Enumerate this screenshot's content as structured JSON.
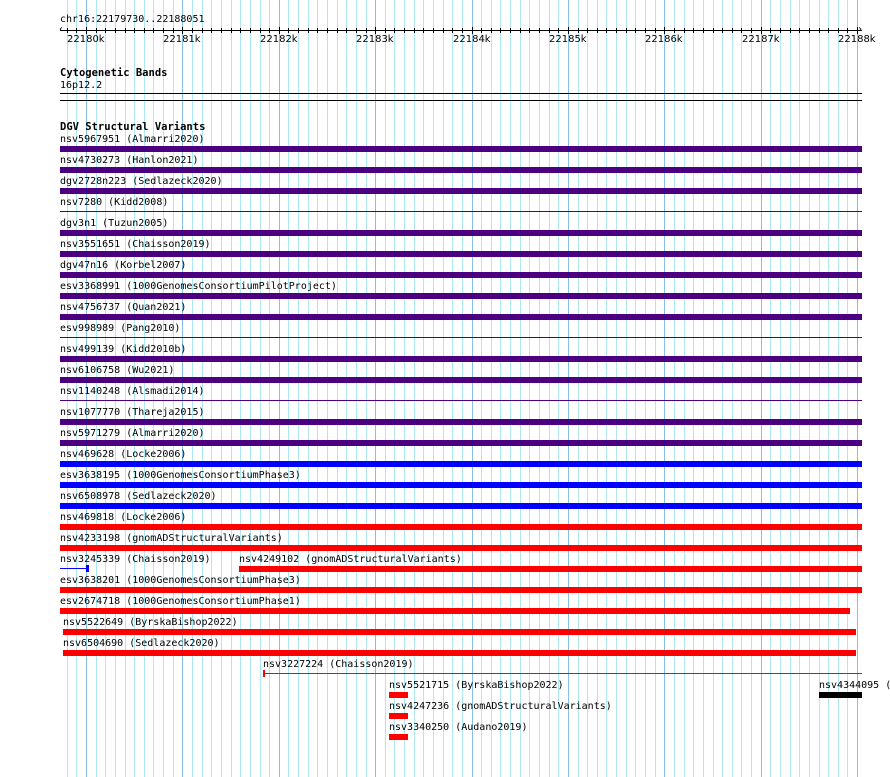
{
  "view": {
    "chrom": "chr16",
    "start": 22179730,
    "end": 22188051,
    "location_label": "chr16:22179730..22188051"
  },
  "ruler": {
    "tick_labels": [
      "22180k",
      "22181k",
      "22182k",
      "22183k",
      "22184k",
      "22185k",
      "22186k",
      "22187k",
      "22188k"
    ]
  },
  "cytoband_track": {
    "title": "Cytogenetic Bands",
    "band": "16p12.2"
  },
  "dgv_track": {
    "title": "DGV Structural Variants",
    "colors": {
      "purple": "#4b0082",
      "blue": "#0000ff",
      "red": "#ff0000",
      "black": "#000000"
    },
    "features": [
      {
        "label": "nsv5967951 (Almarri2020)",
        "color": "purple",
        "style": "thick",
        "row": 0,
        "start": 22179730,
        "end": 22188051
      },
      {
        "label": "nsv4730273 (Hanlon2021)",
        "color": "purple",
        "style": "thick",
        "row": 1,
        "start": 22179730,
        "end": 22188051
      },
      {
        "label": "dgv2728n223 (Sedlazeck2020)",
        "color": "purple",
        "style": "thick",
        "row": 2,
        "start": 22179730,
        "end": 22188051
      },
      {
        "label": "nsv7280 (Kidd2008)",
        "color": "purple",
        "style": "thin",
        "row": 3,
        "start": 22179730,
        "end": 22188051
      },
      {
        "label": "dgv3n1 (Tuzun2005)",
        "color": "purple",
        "style": "thick",
        "row": 4,
        "start": 22179730,
        "end": 22188051
      },
      {
        "label": "nsv3551651 (Chaisson2019)",
        "color": "purple",
        "style": "thick",
        "row": 5,
        "start": 22179730,
        "end": 22188051
      },
      {
        "label": "dgv47n16 (Korbel2007)",
        "color": "purple",
        "style": "thick",
        "row": 6,
        "start": 22179730,
        "end": 22188051
      },
      {
        "label": "esv3368991 (1000GenomesConsortiumPilotProject)",
        "color": "purple",
        "style": "thick",
        "row": 7,
        "start": 22179730,
        "end": 22188051
      },
      {
        "label": "nsv4756737 (Quan2021)",
        "color": "purple",
        "style": "thick",
        "row": 8,
        "start": 22179730,
        "end": 22188051
      },
      {
        "label": "esv998989 (Pang2010)",
        "color": "purple",
        "style": "thin",
        "row": 9,
        "start": 22179730,
        "end": 22188051
      },
      {
        "label": "nsv499139 (Kidd2010b)",
        "color": "purple",
        "style": "thick",
        "row": 10,
        "start": 22179730,
        "end": 22188051
      },
      {
        "label": "nsv6106758 (Wu2021)",
        "color": "purple",
        "style": "thick",
        "row": 11,
        "start": 22179730,
        "end": 22188051
      },
      {
        "label": "nsv1140248 (Alsmadi2014)",
        "color": "purple",
        "style": "thin",
        "row": 12,
        "start": 22179730,
        "end": 22188051
      },
      {
        "label": "nsv1077770 (Thareja2015)",
        "color": "purple",
        "style": "thick",
        "row": 13,
        "start": 22179730,
        "end": 22188051
      },
      {
        "label": "nsv5971279 (Almarri2020)",
        "color": "purple",
        "style": "thick",
        "row": 14,
        "start": 22179730,
        "end": 22188051
      },
      {
        "label": "nsv469628 (Locke2006)",
        "color": "blue",
        "style": "thick",
        "row": 15,
        "start": 22179730,
        "end": 22188051
      },
      {
        "label": "esv3638195 (1000GenomesConsortiumPhase3)",
        "color": "blue",
        "style": "thick",
        "row": 16,
        "start": 22179730,
        "end": 22188051
      },
      {
        "label": "nsv6508978 (Sedlazeck2020)",
        "color": "blue",
        "style": "thick",
        "row": 17,
        "start": 22179730,
        "end": 22188051
      },
      {
        "label": "nsv469818 (Locke2006)",
        "color": "red",
        "style": "thick",
        "row": 18,
        "start": 22179730,
        "end": 22188051
      },
      {
        "label": "nsv4233198 (gnomADStructuralVariants)",
        "color": "red",
        "style": "thick",
        "row": 19,
        "start": 22179730,
        "end": 22188051
      },
      {
        "label": "nsv3245339 (Chaisson2019)",
        "color": "blue",
        "style": "line-end",
        "row": 20,
        "start": 22179730,
        "end": 22180021
      },
      {
        "label": "nsv4249102 (gnomADStructuralVariants)",
        "color": "red",
        "style": "thick",
        "row": 20,
        "start": 22181589,
        "end": 22188051
      },
      {
        "label": "esv3638201 (1000GenomesConsortiumPhase3)",
        "color": "red",
        "style": "thick",
        "row": 21,
        "start": 22179730,
        "end": 22188051
      },
      {
        "label": "esv2674718 (1000GenomesConsortiumPhase1)",
        "color": "red",
        "style": "thick",
        "row": 22,
        "start": 22179730,
        "end": 22187923
      },
      {
        "label": "nsv5522649 (ByrskaBishop2022)",
        "color": "red",
        "style": "thick",
        "row": 23,
        "start": 22179761,
        "end": 22187985
      },
      {
        "label": "nsv6504690 (Sedlazeck2020)",
        "color": "red",
        "style": "thick",
        "row": 24,
        "start": 22179761,
        "end": 22187985
      },
      {
        "label": "nsv3227224 (Chaisson2019)",
        "color": "red",
        "style": "line-start",
        "row": 25,
        "start": 22181838,
        "end": 22188051
      },
      {
        "label": "nsv5521715 (ByrskaBishop2022)",
        "color": "red",
        "style": "thick",
        "row": 26,
        "start": 22183146,
        "end": 22183344
      },
      {
        "label": "nsv4344095 (",
        "color": "black",
        "style": "thick",
        "row": 26,
        "start": 22187601,
        "end": 22188051
      },
      {
        "label": "nsv4247236 (gnomADStructuralVariants)",
        "color": "red",
        "style": "thick",
        "row": 27,
        "start": 22183146,
        "end": 22183344
      },
      {
        "label": "nsv3340250 (Audano2019)",
        "color": "red",
        "style": "thick",
        "row": 28,
        "start": 22183146,
        "end": 22183344
      }
    ]
  }
}
